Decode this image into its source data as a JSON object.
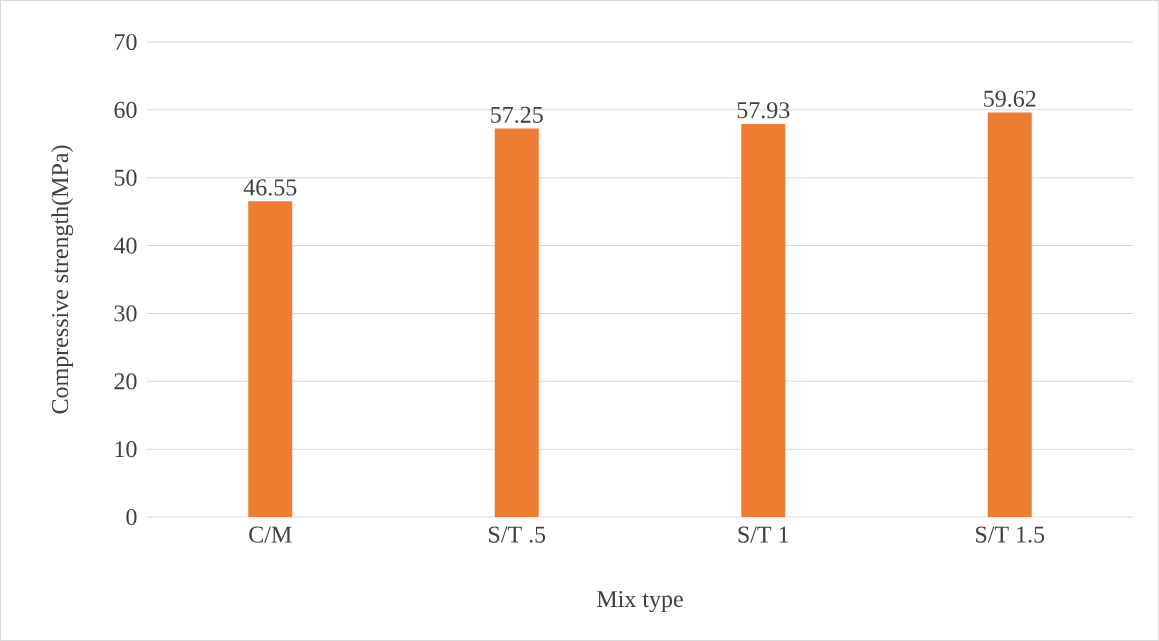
{
  "chart_data": {
    "type": "bar",
    "categories": [
      "C/M",
      "S/T .5",
      "S/T 1",
      "S/T 1.5"
    ],
    "values": [
      46.55,
      57.25,
      57.93,
      59.62
    ],
    "color": "#ed7d31",
    "xlabel": "Mix type",
    "ylabel": "Compressive strength(MPa)",
    "ylim": [
      0,
      70
    ],
    "yticks": [
      0,
      10,
      20,
      30,
      40,
      50,
      60,
      70
    ],
    "grid": "y",
    "data_labels": true
  }
}
